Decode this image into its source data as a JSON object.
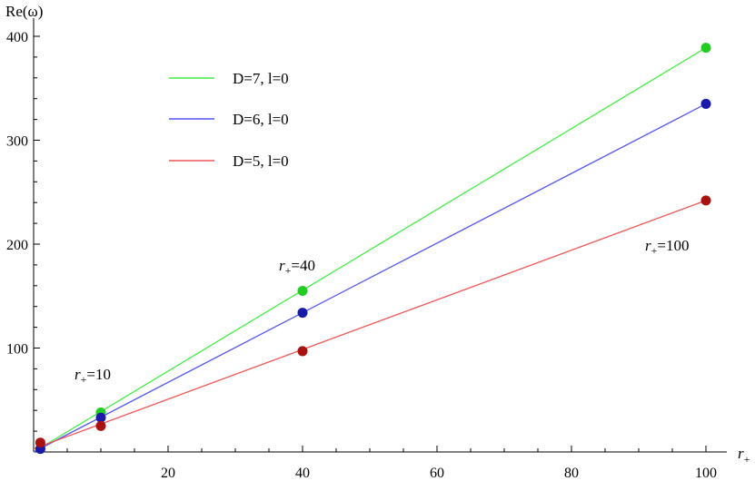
{
  "chart_data": {
    "type": "line",
    "title": "",
    "xlabel_main": "r",
    "xlabel_sub": "+",
    "ylabel": "Re(ω)",
    "xlim": [
      0,
      100
    ],
    "ylim": [
      0,
      400
    ],
    "x_ticks": [
      20,
      40,
      60,
      80,
      100
    ],
    "y_ticks": [
      100,
      200,
      300,
      400
    ],
    "grid": false,
    "legend_position": "top-left",
    "series": [
      {
        "name": "D=7, l=0",
        "line_color": "#44ee44",
        "marker_color": "#22cc22",
        "line": {
          "x": [
            0,
            100
          ],
          "y": [
            0,
            389
          ]
        },
        "points": [
          {
            "x": 1,
            "y": 3
          },
          {
            "x": 10,
            "y": 38
          },
          {
            "x": 40,
            "y": 155
          },
          {
            "x": 100,
            "y": 389
          }
        ]
      },
      {
        "name": "D=6, l=0",
        "line_color": "#5555ee",
        "marker_color": "#1a1aaa",
        "line": {
          "x": [
            0,
            100
          ],
          "y": [
            0,
            335
          ]
        },
        "points": [
          {
            "x": 1,
            "y": 3
          },
          {
            "x": 10,
            "y": 33
          },
          {
            "x": 40,
            "y": 134
          },
          {
            "x": 100,
            "y": 335
          }
        ]
      },
      {
        "name": "D=5, l=0",
        "line_color": "#ee5555",
        "marker_color": "#aa1111",
        "line": {
          "x": [
            0,
            100
          ],
          "y": [
            3,
            242
          ]
        },
        "points": [
          {
            "x": 1,
            "y": 9
          },
          {
            "x": 10,
            "y": 25
          },
          {
            "x": 40,
            "y": 97
          },
          {
            "x": 100,
            "y": 242
          }
        ]
      }
    ],
    "annotations": [
      {
        "main": "r",
        "sub": "+",
        "text": "=10"
      },
      {
        "main": "r",
        "sub": "+",
        "text": "=40"
      },
      {
        "main": "r",
        "sub": "+",
        "text": "=100"
      }
    ]
  }
}
